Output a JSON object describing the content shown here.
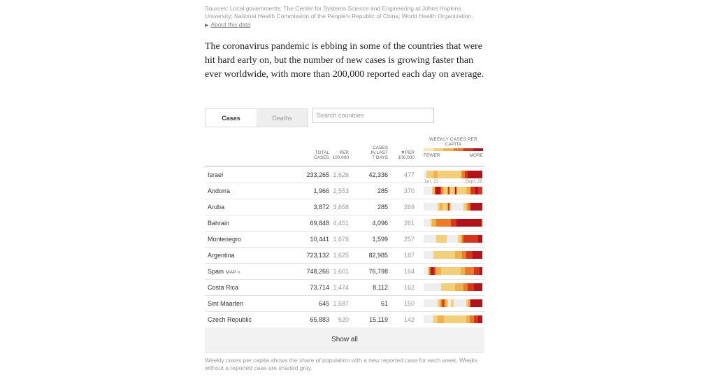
{
  "sources": "Sources: Local governments; The Center for Systems Science and Engineering at Johns Hopkins University; National Health Commission of the People's Republic of China; World Health Organization.",
  "about_link": "About this data",
  "lede": "The coronavirus pandemic is ebbing in some of the countries that were hit hard early on, but the number of new cases is growing faster than ever worldwide, with more than 200,000 reported each day on average.",
  "tabs": [
    {
      "label": "Cases",
      "active": true
    },
    {
      "label": "Deaths",
      "active": false
    }
  ],
  "search": {
    "placeholder": "Search countries"
  },
  "table": {
    "headers": {
      "total": [
        "TOTAL",
        "CASES"
      ],
      "per100": [
        "PER",
        "100,000"
      ],
      "week": [
        "CASES",
        "IN LAST",
        "7 DAYS"
      ],
      "weekper": [
        "▼PER",
        "100,000"
      ]
    },
    "heatmap_title": [
      "WEEKLY CASES PER",
      "CAPITA"
    ],
    "legend_fewer": "FEWER",
    "legend_more": "MORE",
    "date_start": "Jan. 22",
    "date_end": "Sept. 28",
    "map_label": "MAP »",
    "rows": [
      {
        "country": "Israel",
        "total": "233,265",
        "per100": "2,626",
        "week": "42,336",
        "weekper": "477",
        "map": false
      },
      {
        "country": "Andorra",
        "total": "1,966",
        "per100": "2,553",
        "week": "285",
        "weekper": "370",
        "map": false
      },
      {
        "country": "Aruba",
        "total": "3,872",
        "per100": "3,658",
        "week": "285",
        "weekper": "269",
        "map": false
      },
      {
        "country": "Bahrain",
        "total": "69,848",
        "per100": "4,451",
        "week": "4,096",
        "weekper": "261",
        "map": false
      },
      {
        "country": "Montenegro",
        "total": "10,441",
        "per100": "1,678",
        "week": "1,599",
        "weekper": "257",
        "map": false
      },
      {
        "country": "Argentina",
        "total": "723,132",
        "per100": "1,625",
        "week": "82,985",
        "weekper": "187",
        "map": false
      },
      {
        "country": "Spain",
        "total": "748,266",
        "per100": "1,601",
        "week": "76,798",
        "weekper": "164",
        "map": true
      },
      {
        "country": "Costa Rica",
        "total": "73,714",
        "per100": "1,474",
        "week": "8,112",
        "weekper": "162",
        "map": false
      },
      {
        "country": "Sint Maarten",
        "total": "645",
        "per100": "1,587",
        "week": "61",
        "weekper": "150",
        "map": false
      },
      {
        "country": "Czech Republic",
        "total": "65,883",
        "per100": "620",
        "week": "15,119",
        "weekper": "142",
        "map": false
      }
    ]
  },
  "show_all": "Show all",
  "footnote": "Weekly cases per capita shows the share of population with a new reported case for each week. Weeks without a reported case are shaded gray.",
  "colors": {
    "gray": "#eeeeee",
    "scale": [
      "#f7e7b0",
      "#f3cf7a",
      "#f0b04a",
      "#eb7a2a",
      "#d9351c",
      "#b5121b"
    ]
  },
  "heat_levels": [
    [
      0,
      0,
      1,
      1,
      1,
      1,
      1,
      2,
      2,
      2,
      1,
      1,
      1,
      1,
      1,
      1,
      1,
      1,
      1,
      1,
      1,
      1,
      1,
      1,
      1,
      1,
      2,
      3,
      3,
      4,
      4,
      5,
      5,
      5,
      5,
      5,
      5,
      5,
      5,
      5,
      5
    ],
    [
      0,
      0,
      0,
      0,
      0,
      0,
      1,
      2,
      4,
      5,
      5,
      4,
      3,
      2,
      1,
      1,
      2,
      4,
      1,
      1,
      1,
      2,
      5,
      1,
      1,
      1,
      1,
      1,
      1,
      1,
      2,
      2,
      3,
      4,
      4,
      4,
      5,
      5,
      4,
      4,
      4
    ],
    [
      0,
      0,
      0,
      0,
      0,
      0,
      0,
      0,
      0,
      0,
      1,
      2,
      2,
      1,
      1,
      1,
      2,
      4,
      1,
      0,
      0,
      0,
      0,
      0,
      0,
      0,
      0,
      0,
      1,
      1,
      2,
      3,
      4,
      5,
      5,
      5,
      5,
      5,
      5,
      5,
      5
    ],
    [
      0,
      0,
      0,
      0,
      0,
      1,
      2,
      2,
      2,
      3,
      3,
      3,
      3,
      3,
      3,
      3,
      3,
      3,
      3,
      4,
      4,
      4,
      4,
      5,
      5,
      5,
      5,
      5,
      5,
      5,
      5,
      5,
      5,
      5,
      5,
      5,
      5,
      5,
      5,
      5,
      4
    ],
    [
      0,
      0,
      0,
      0,
      0,
      0,
      0,
      0,
      0,
      1,
      1,
      1,
      1,
      1,
      1,
      1,
      0,
      0,
      0,
      0,
      0,
      0,
      0,
      0,
      1,
      1,
      2,
      3,
      4,
      4,
      4,
      4,
      4,
      4,
      4,
      4,
      4,
      4,
      5,
      5,
      5
    ],
    [
      0,
      0,
      0,
      0,
      0,
      0,
      0,
      1,
      1,
      1,
      1,
      1,
      1,
      1,
      1,
      1,
      1,
      1,
      1,
      1,
      1,
      1,
      2,
      2,
      2,
      2,
      2,
      3,
      3,
      3,
      4,
      4,
      4,
      4,
      5,
      5,
      5,
      5,
      5,
      5,
      5
    ],
    [
      0,
      0,
      0,
      1,
      3,
      5,
      5,
      4,
      3,
      2,
      2,
      2,
      1,
      1,
      1,
      1,
      1,
      1,
      1,
      1,
      1,
      1,
      1,
      1,
      1,
      1,
      2,
      2,
      2,
      3,
      3,
      3,
      3,
      3,
      3,
      4,
      4,
      4,
      4,
      5,
      5
    ],
    [
      0,
      0,
      0,
      0,
      0,
      0,
      0,
      0,
      0,
      0,
      0,
      0,
      1,
      1,
      1,
      1,
      1,
      1,
      1,
      1,
      1,
      1,
      2,
      2,
      2,
      2,
      2,
      2,
      3,
      3,
      3,
      4,
      4,
      4,
      4,
      5,
      5,
      5,
      5,
      5,
      5
    ],
    [
      0,
      0,
      0,
      0,
      0,
      0,
      0,
      0,
      0,
      0,
      1,
      2,
      3,
      4,
      3,
      2,
      1,
      0,
      0,
      1,
      1,
      0,
      0,
      0,
      0,
      0,
      0,
      0,
      0,
      0,
      1,
      2,
      4,
      5,
      5,
      5,
      5,
      5,
      5,
      5,
      5
    ],
    [
      0,
      0,
      0,
      0,
      0,
      0,
      0,
      1,
      1,
      1,
      2,
      2,
      2,
      2,
      1,
      1,
      1,
      1,
      1,
      1,
      1,
      1,
      1,
      1,
      1,
      1,
      1,
      1,
      1,
      1,
      2,
      2,
      3,
      3,
      3,
      4,
      4,
      4,
      5,
      5,
      5
    ]
  ]
}
